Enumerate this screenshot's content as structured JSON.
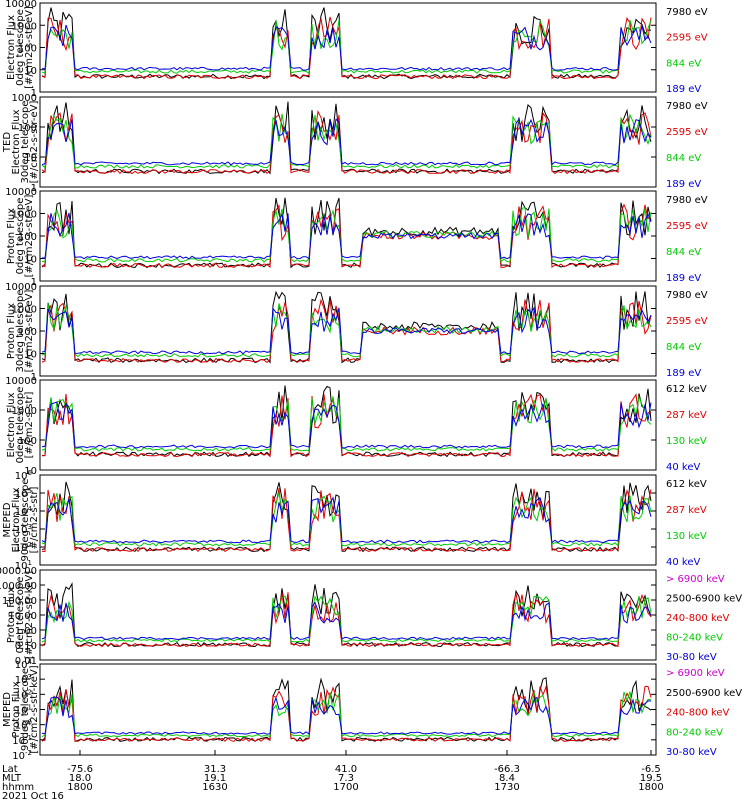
{
  "panels": [
    {
      "ylabel": [
        "Electron Flux",
        "0deg telescope",
        "[#/cm2-s-str-eV]"
      ],
      "ticks": [
        "1",
        "10",
        "100",
        "1000",
        "10000"
      ],
      "legend": [
        {
          "text": "7980 eV",
          "color": "#000000"
        },
        {
          "text": "2595 eV",
          "color": "#e00000"
        },
        {
          "text": "844 eV",
          "color": "#00cc00"
        },
        {
          "text": "189 eV",
          "color": "#0000dd"
        }
      ]
    },
    {
      "ylabel": [
        "TED",
        "Electron Flux",
        "30deg telescope",
        "[#/cm2-s-str-eV]"
      ],
      "ticks": [
        "1",
        "10",
        "100",
        "1000"
      ],
      "legend": [
        {
          "text": "7980 eV",
          "color": "#000000"
        },
        {
          "text": "2595 eV",
          "color": "#e00000"
        },
        {
          "text": "844 eV",
          "color": "#00cc00"
        },
        {
          "text": "189 eV",
          "color": "#0000dd"
        }
      ]
    },
    {
      "ylabel": [
        "Proton Flux",
        "0deg telescope",
        "[#/cm2-s-str-eV]"
      ],
      "ticks": [
        "1",
        "10",
        "100",
        "1000",
        "10000"
      ],
      "legend": [
        {
          "text": "7980 eV",
          "color": "#000000"
        },
        {
          "text": "2595 eV",
          "color": "#e00000"
        },
        {
          "text": "844 eV",
          "color": "#00cc00"
        },
        {
          "text": "189 eV",
          "color": "#0000dd"
        }
      ]
    },
    {
      "ylabel": [
        "Proton Flux",
        "30deg telescope",
        "[#/cm2-s-str-eV]"
      ],
      "ticks": [
        "1",
        "10",
        "100",
        "1000",
        "10000"
      ],
      "legend": [
        {
          "text": "7980 eV",
          "color": "#000000"
        },
        {
          "text": "2595 eV",
          "color": "#e00000"
        },
        {
          "text": "844 eV",
          "color": "#00cc00"
        },
        {
          "text": "189 eV",
          "color": "#0000dd"
        }
      ]
    },
    {
      "ylabel": [
        "Electron Flux",
        "0deg telescope",
        "[#/cm2-s-str]"
      ],
      "ticks": [
        "10",
        "100",
        "1000",
        "10000"
      ],
      "legend": [
        {
          "text": "612 keV",
          "color": "#000000"
        },
        {
          "text": "287 keV",
          "color": "#e00000"
        },
        {
          "text": "130 keV",
          "color": "#00cc00"
        },
        {
          "text": "40 keV",
          "color": "#0000dd"
        }
      ]
    },
    {
      "ylabel": [
        "MEPED",
        "Electron Flux",
        "90deg telescope",
        "[#/cm2-s-str]"
      ],
      "ticks": [
        "10^1",
        "10^2",
        "10^3",
        "10^4",
        "10^5",
        "10^6"
      ],
      "legend": [
        {
          "text": "612 keV",
          "color": "#000000"
        },
        {
          "text": "287 keV",
          "color": "#e00000"
        },
        {
          "text": "130 keV",
          "color": "#00cc00"
        },
        {
          "text": "40 keV",
          "color": "#0000dd"
        }
      ]
    },
    {
      "ylabel": [
        "Proton Flux",
        "0deg telescope",
        "[#/cm2-s-str-keV]"
      ],
      "ticks": [
        "0.01",
        "0.10",
        "1.00",
        "10.00",
        "100.00",
        "1000.00",
        "10000.00"
      ],
      "legend": [
        {
          "text": "> 6900 keV",
          "color": "#cc00cc"
        },
        {
          "text": "2500-6900 keV",
          "color": "#000000"
        },
        {
          "text": "240-800 keV",
          "color": "#e00000"
        },
        {
          "text": "80-240 keV",
          "color": "#00cc00"
        },
        {
          "text": "30-80 keV",
          "color": "#0000dd"
        }
      ]
    },
    {
      "ylabel": [
        "MEPED",
        "Proton Flux",
        "90deg telescope",
        "[#/cm2-s-str-keV]"
      ],
      "ticks": [
        "10^-2",
        "10^-1",
        "10^0",
        "10^1",
        "10^2",
        "10^3",
        "10^4"
      ],
      "legend": [
        {
          "text": "> 6900 keV",
          "color": "#cc00cc"
        },
        {
          "text": "2500-6900 keV",
          "color": "#000000"
        },
        {
          "text": "240-800 keV",
          "color": "#e00000"
        },
        {
          "text": "80-240 keV",
          "color": "#00cc00"
        },
        {
          "text": "30-80 keV",
          "color": "#0000dd"
        }
      ]
    }
  ],
  "xaxis": {
    "row_labels": [
      "Lat",
      "MLT",
      "hhmm"
    ],
    "ticks": [
      {
        "lat": "-75.6",
        "mlt": "18.0",
        "hhmm": "1800"
      },
      {
        "lat": "31.3",
        "mlt": "19.1",
        "hhmm": "1630"
      },
      {
        "lat": "41.0",
        "mlt": "7.3",
        "hhmm": "1700"
      },
      {
        "lat": "-66.3",
        "mlt": "8.4",
        "hhmm": "1730"
      },
      {
        "lat": "-6.5",
        "mlt": "19.5",
        "hhmm": "1800"
      }
    ],
    "date": "2021 Oct 16"
  },
  "chart_data": [
    {
      "type": "line",
      "ylabel": "Electron Flux 0deg telescope [#/cm2-s-str-eV]",
      "yscale": "log",
      "ylim": [
        1,
        10000
      ],
      "series": [
        {
          "name": "7980 eV",
          "color": "#000000"
        },
        {
          "name": "2595 eV",
          "color": "#e00000"
        },
        {
          "name": "844 eV",
          "color": "#00cc00"
        },
        {
          "name": "189 eV",
          "color": "#0000dd"
        }
      ]
    },
    {
      "type": "line",
      "ylabel": "TED Electron Flux 30deg telescope [#/cm2-s-str-eV]",
      "yscale": "log",
      "ylim": [
        1,
        1000
      ],
      "series": [
        {
          "name": "7980 eV",
          "color": "#000000"
        },
        {
          "name": "2595 eV",
          "color": "#e00000"
        },
        {
          "name": "844 eV",
          "color": "#00cc00"
        },
        {
          "name": "189 eV",
          "color": "#0000dd"
        }
      ]
    },
    {
      "type": "line",
      "ylabel": "Proton Flux 0deg telescope [#/cm2-s-str-eV]",
      "yscale": "log",
      "ylim": [
        1,
        10000
      ],
      "series": [
        {
          "name": "7980 eV",
          "color": "#000000"
        },
        {
          "name": "2595 eV",
          "color": "#e00000"
        },
        {
          "name": "844 eV",
          "color": "#00cc00"
        },
        {
          "name": "189 eV",
          "color": "#0000dd"
        }
      ]
    },
    {
      "type": "line",
      "ylabel": "Proton Flux 30deg telescope [#/cm2-s-str-eV]",
      "yscale": "log",
      "ylim": [
        1,
        10000
      ],
      "series": [
        {
          "name": "7980 eV",
          "color": "#000000"
        },
        {
          "name": "2595 eV",
          "color": "#e00000"
        },
        {
          "name": "844 eV",
          "color": "#00cc00"
        },
        {
          "name": "189 eV",
          "color": "#0000dd"
        }
      ]
    },
    {
      "type": "line",
      "ylabel": "Electron Flux 0deg telescope [#/cm2-s-str]",
      "yscale": "log",
      "ylim": [
        10,
        10000
      ],
      "series": [
        {
          "name": "612 keV",
          "color": "#000000"
        },
        {
          "name": "287 keV",
          "color": "#e00000"
        },
        {
          "name": "130 keV",
          "color": "#00cc00"
        },
        {
          "name": "40 keV",
          "color": "#0000dd"
        }
      ]
    },
    {
      "type": "line",
      "ylabel": "MEPED Electron Flux 90deg telescope [#/cm2-s-str]",
      "yscale": "log",
      "ylim": [
        10,
        1000000
      ],
      "series": [
        {
          "name": "612 keV",
          "color": "#000000"
        },
        {
          "name": "287 keV",
          "color": "#e00000"
        },
        {
          "name": "130 keV",
          "color": "#00cc00"
        },
        {
          "name": "40 keV",
          "color": "#0000dd"
        }
      ]
    },
    {
      "type": "line",
      "ylabel": "Proton Flux 0deg telescope [#/cm2-s-str-keV]",
      "yscale": "log",
      "ylim": [
        0.01,
        10000
      ],
      "series": [
        {
          "name": "> 6900 keV",
          "color": "#cc00cc"
        },
        {
          "name": "2500-6900 keV",
          "color": "#000000"
        },
        {
          "name": "240-800 keV",
          "color": "#e00000"
        },
        {
          "name": "80-240 keV",
          "color": "#00cc00"
        },
        {
          "name": "30-80 keV",
          "color": "#0000dd"
        }
      ]
    },
    {
      "type": "line",
      "ylabel": "MEPED Proton Flux 90deg telescope [#/cm2-s-str-keV]",
      "yscale": "log",
      "ylim": [
        0.01,
        10000
      ],
      "series": [
        {
          "name": "> 6900 keV",
          "color": "#cc00cc"
        },
        {
          "name": "2500-6900 keV",
          "color": "#000000"
        },
        {
          "name": "240-800 keV",
          "color": "#e00000"
        },
        {
          "name": "80-240 keV",
          "color": "#00cc00"
        },
        {
          "name": "30-80 keV",
          "color": "#0000dd"
        }
      ]
    }
  ]
}
